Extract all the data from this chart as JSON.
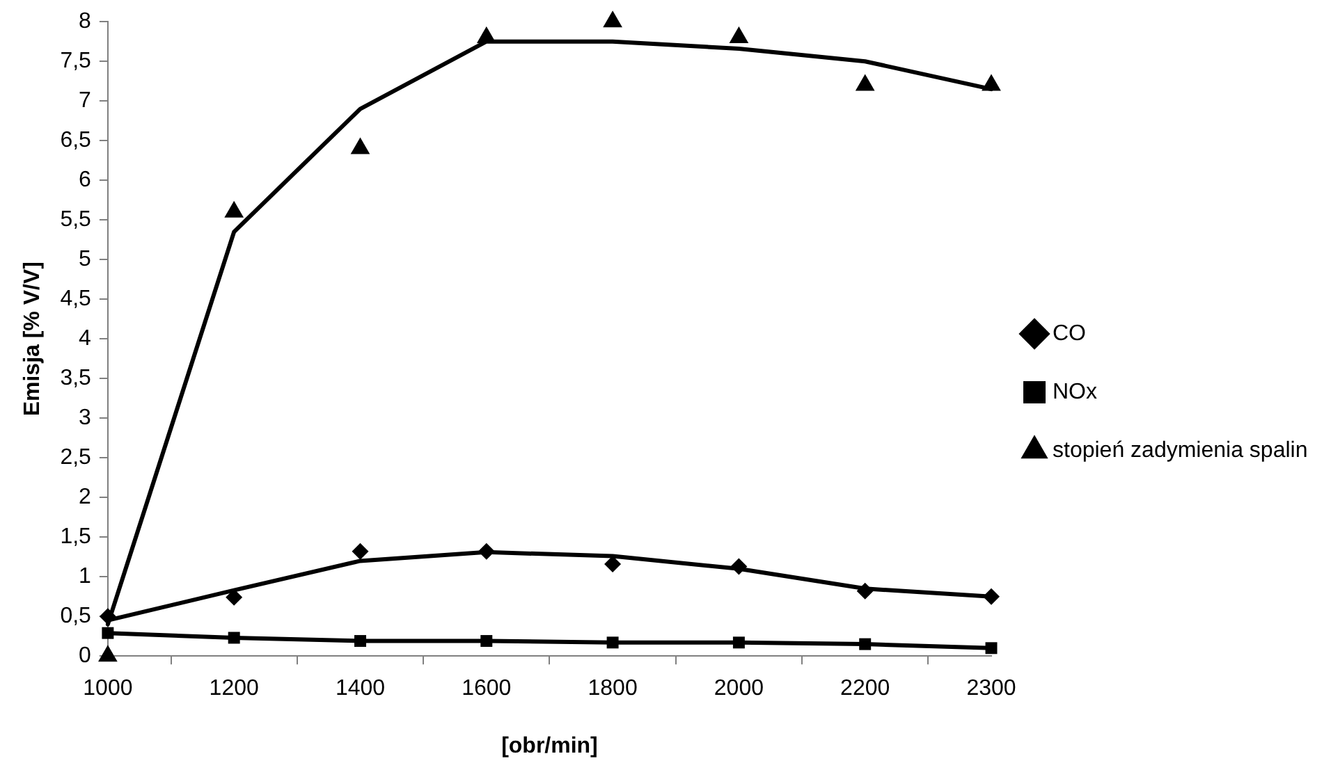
{
  "chart_data": {
    "type": "line",
    "xlabel": "[obr/min]",
    "ylabel": "Emisja [% V/V]",
    "categories": [
      "1000",
      "1200",
      "1400",
      "1600",
      "1800",
      "2000",
      "2200",
      "2300"
    ],
    "ylim": [
      0,
      8
    ],
    "yticks": [
      0,
      {
        "value": 0.5,
        "label": "0,5"
      },
      1,
      {
        "value": 1.5,
        "label": "1,5"
      },
      2,
      {
        "value": 2.5,
        "label": "2,5"
      },
      3,
      {
        "value": 3.5,
        "label": "3,5"
      },
      4,
      {
        "value": 4.5,
        "label": "4,5"
      },
      5,
      {
        "value": 5.5,
        "label": "5,5"
      },
      6,
      {
        "value": 6.5,
        "label": "6,5"
      },
      7,
      {
        "value": 7.5,
        "label": "7,5"
      },
      8
    ],
    "legend": "right",
    "grid": false,
    "line_style": "solid",
    "series": [
      {
        "name": "CO",
        "type": "scatter",
        "marker": "diamond",
        "color": "#000000",
        "values": [
          0.5,
          0.74,
          1.32,
          1.32,
          1.16,
          1.13,
          0.82,
          0.75
        ]
      },
      {
        "name": "NOx",
        "type": "line",
        "marker": "square",
        "color": "#000000",
        "values": [
          0.29,
          0.23,
          0.19,
          0.19,
          0.17,
          0.17,
          0.15,
          0.1
        ]
      },
      {
        "name": "stopień zadymienia spalin",
        "type": "scatter",
        "marker": "triangle",
        "color": "#000000",
        "values": [
          0,
          5.6,
          6.4,
          7.8,
          8.0,
          7.8,
          7.2,
          7.2
        ]
      },
      {
        "type": "line",
        "marker": "none",
        "color": "#000000",
        "values": [
          0.45,
          0.83,
          1.2,
          1.31,
          1.26,
          1.1,
          0.85,
          0.75
        ]
      },
      {
        "type": "line",
        "marker": "none",
        "color": "#000000",
        "values": [
          0.4,
          5.35,
          6.9,
          7.75,
          7.75,
          7.66,
          7.5,
          7.15
        ]
      }
    ]
  }
}
